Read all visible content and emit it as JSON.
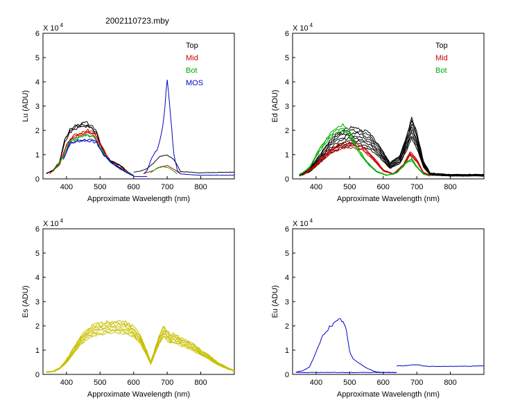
{
  "figure": {
    "title": "2002110723.mby"
  },
  "chart_data": [
    {
      "id": "lu",
      "type": "line",
      "ylabel": "Lu (ADU)",
      "xlabel": "Approximate Wavelength (nm)",
      "multiplier_label": "X 10",
      "multiplier_exp": "4",
      "xlim": [
        330,
        900
      ],
      "ylim": [
        0,
        6
      ],
      "xticks": [
        400,
        500,
        600,
        700,
        800
      ],
      "yticks": [
        0,
        1,
        2,
        3,
        4,
        5,
        6
      ],
      "legend": [
        {
          "name": "Top",
          "color": "#000000"
        },
        {
          "name": "Mid",
          "color": "#cc0000"
        },
        {
          "name": "Bot",
          "color": "#00aa00"
        },
        {
          "name": "MOS",
          "color": "#0000cc"
        }
      ],
      "series": [
        {
          "name": "Top",
          "color": "#000000",
          "count": 3,
          "spread": 0.06,
          "x": [
            340,
            360,
            380,
            395,
            410,
            430,
            450,
            470,
            490,
            510,
            530,
            560,
            590,
            600
          ],
          "y": [
            0.22,
            0.35,
            0.7,
            1.6,
            1.95,
            2.15,
            2.25,
            2.2,
            1.9,
            1.1,
            0.75,
            0.55,
            0.2,
            0.12
          ]
        },
        {
          "name": "Top",
          "color": "#000000",
          "count": 1,
          "spread": 0,
          "x": [
            600,
            620,
            640,
            660,
            680,
            700,
            720,
            740,
            800,
            900
          ],
          "y": [
            0.28,
            0.32,
            0.42,
            0.65,
            0.95,
            1.0,
            0.8,
            0.3,
            0.25,
            0.28
          ]
        },
        {
          "name": "Mid",
          "color": "#cc0000",
          "count": 3,
          "spread": 0.05,
          "x": [
            350,
            380,
            400,
            420,
            440,
            460,
            480,
            500,
            530,
            560,
            600
          ],
          "y": [
            0.22,
            0.6,
            1.4,
            1.75,
            1.82,
            1.95,
            1.9,
            1.45,
            0.7,
            0.45,
            0.15
          ]
        },
        {
          "name": "Mid",
          "color": "#cc0000",
          "count": 1,
          "spread": 0,
          "x": [
            630,
            660,
            680,
            700,
            720,
            740
          ],
          "y": [
            0.22,
            0.35,
            0.5,
            0.55,
            0.4,
            0.2
          ]
        },
        {
          "name": "Bot",
          "color": "#00aa00",
          "count": 2,
          "spread": 0.04,
          "x": [
            360,
            390,
            410,
            440,
            460,
            480,
            500,
            530,
            560,
            600
          ],
          "y": [
            0.3,
            0.9,
            1.55,
            1.72,
            1.8,
            1.75,
            1.3,
            0.7,
            0.4,
            0.15
          ]
        },
        {
          "name": "Bot",
          "color": "#00aa00",
          "count": 1,
          "spread": 0,
          "x": [
            650,
            670,
            690,
            710,
            730
          ],
          "y": [
            0.25,
            0.45,
            0.5,
            0.42,
            0.2
          ]
        },
        {
          "name": "MOS",
          "color": "#0000cc",
          "count": 2,
          "spread": 0.05,
          "x": [
            390,
            410,
            430,
            450,
            470,
            490,
            510,
            540,
            580,
            600
          ],
          "y": [
            0.8,
            1.45,
            1.55,
            1.6,
            1.58,
            1.5,
            1.0,
            0.6,
            0.25,
            0.12
          ]
        },
        {
          "name": "MOS",
          "color": "#0000cc",
          "count": 1,
          "spread": 0,
          "x": [
            630,
            640,
            655,
            670,
            680,
            690,
            700,
            710,
            720,
            730,
            740,
            760,
            800,
            900
          ],
          "y": [
            0.2,
            0.35,
            0.9,
            1.2,
            1.7,
            2.5,
            4.15,
            2.6,
            1.0,
            0.35,
            0.2,
            0.18,
            0.15,
            0.15
          ]
        },
        {
          "name": "MOS",
          "color": "#0000cc",
          "count": 1,
          "spread": 0,
          "x": [
            600,
            640
          ],
          "y": [
            0.1,
            0.1
          ]
        }
      ]
    },
    {
      "id": "ed",
      "type": "line",
      "ylabel": "Ed (ADU)",
      "xlabel": "Approximate Wavelength (nm)",
      "multiplier_label": "X 10",
      "multiplier_exp": "4",
      "xlim": [
        330,
        900
      ],
      "ylim": [
        0,
        6
      ],
      "xticks": [
        400,
        500,
        600,
        700,
        800
      ],
      "yticks": [
        0,
        1,
        2,
        3,
        4,
        5,
        6
      ],
      "legend": [
        {
          "name": "Top",
          "color": "#000000"
        },
        {
          "name": "Mid",
          "color": "#cc0000"
        },
        {
          "name": "Bot",
          "color": "#00aa00"
        }
      ],
      "series": [
        {
          "name": "Top",
          "color": "#000000",
          "count": 8,
          "spread": 0.12,
          "x": [
            350,
            380,
            410,
            440,
            470,
            500,
            530,
            560,
            590,
            620,
            650,
            670,
            685,
            700,
            720,
            740,
            800,
            900
          ],
          "y": [
            0.15,
            0.35,
            0.8,
            1.3,
            1.6,
            1.75,
            1.7,
            1.55,
            1.1,
            0.55,
            0.8,
            1.5,
            2.1,
            1.6,
            0.6,
            0.2,
            0.15,
            0.15
          ]
        },
        {
          "name": "Mid",
          "color": "#cc0000",
          "count": 4,
          "spread": 0.1,
          "x": [
            360,
            390,
            420,
            450,
            480,
            510,
            540,
            570,
            600,
            630,
            660,
            680,
            700,
            720,
            740
          ],
          "y": [
            0.15,
            0.45,
            0.85,
            1.2,
            1.35,
            1.4,
            1.25,
            0.85,
            0.35,
            0.2,
            0.55,
            1.05,
            0.75,
            0.25,
            0.15
          ]
        },
        {
          "name": "Bot",
          "color": "#00aa00",
          "count": 3,
          "spread": 0.1,
          "x": [
            350,
            380,
            410,
            440,
            460,
            480,
            500,
            520,
            550,
            580,
            610,
            640,
            670,
            685,
            700,
            720,
            740
          ],
          "y": [
            0.15,
            0.45,
            1.2,
            1.75,
            2.0,
            2.1,
            1.85,
            1.3,
            0.7,
            0.3,
            0.15,
            0.25,
            0.7,
            0.8,
            0.5,
            0.2,
            0.12
          ]
        }
      ]
    },
    {
      "id": "es",
      "type": "line",
      "ylabel": "Es (ADU)",
      "xlabel": "Approximate Wavelength (nm)",
      "multiplier_label": "X 10",
      "multiplier_exp": "4",
      "xlim": [
        330,
        900
      ],
      "ylim": [
        0,
        6
      ],
      "xticks": [
        400,
        500,
        600,
        700,
        800
      ],
      "yticks": [
        0,
        1,
        2,
        3,
        4,
        5,
        6
      ],
      "legend": [],
      "series": [
        {
          "name": "Es",
          "color": "#c8c000",
          "count": 8,
          "spread": 0.07,
          "x": [
            340,
            360,
            380,
            400,
            420,
            440,
            460,
            480,
            500,
            520,
            540,
            560,
            580,
            600,
            620,
            640,
            650
          ],
          "y": [
            0.1,
            0.12,
            0.25,
            0.55,
            0.95,
            1.35,
            1.65,
            1.8,
            1.88,
            1.92,
            1.95,
            1.95,
            1.9,
            1.75,
            1.45,
            0.85,
            0.5
          ]
        },
        {
          "name": "Es",
          "color": "#c8c000",
          "count": 8,
          "spread": 0.07,
          "x": [
            650,
            660,
            670,
            680,
            690,
            700,
            710,
            720,
            740,
            760,
            780,
            800,
            820,
            850,
            880,
            900
          ],
          "y": [
            0.45,
            0.8,
            1.2,
            1.55,
            1.75,
            1.6,
            1.45,
            1.5,
            1.35,
            1.25,
            1.1,
            0.9,
            0.75,
            0.45,
            0.25,
            0.15
          ]
        }
      ]
    },
    {
      "id": "eu",
      "type": "line",
      "ylabel": "Eu (ADU)",
      "xlabel": "Approximate Wavelength (nm)",
      "multiplier_label": "X 10",
      "multiplier_exp": "4",
      "xlim": [
        330,
        900
      ],
      "ylim": [
        0,
        6
      ],
      "xticks": [
        400,
        500,
        600,
        700,
        800
      ],
      "yticks": [
        0,
        1,
        2,
        3,
        4,
        5,
        6
      ],
      "legend": [],
      "series": [
        {
          "name": "Eu",
          "color": "#0000cc",
          "count": 1,
          "spread": 0,
          "x": [
            340,
            360,
            380,
            400,
            420,
            440,
            460,
            470,
            480,
            490,
            500,
            510,
            520,
            540,
            560,
            580,
            600,
            620,
            640
          ],
          "y": [
            0.1,
            0.15,
            0.3,
            0.9,
            1.6,
            1.95,
            2.15,
            2.25,
            2.2,
            1.8,
            0.95,
            0.65,
            0.55,
            0.35,
            0.2,
            0.1,
            0.08,
            0.08,
            0.08
          ]
        },
        {
          "name": "Eu",
          "color": "#0000cc",
          "count": 1,
          "spread": 0,
          "x": [
            640,
            660,
            680,
            700,
            720,
            740,
            800,
            900
          ],
          "y": [
            0.35,
            0.36,
            0.38,
            0.4,
            0.34,
            0.33,
            0.33,
            0.35
          ]
        },
        {
          "name": "Eu",
          "color": "#0000cc",
          "count": 1,
          "spread": 0,
          "x": [
            340,
            600,
            640
          ],
          "y": [
            0.08,
            0.08,
            0.08
          ]
        }
      ]
    }
  ]
}
